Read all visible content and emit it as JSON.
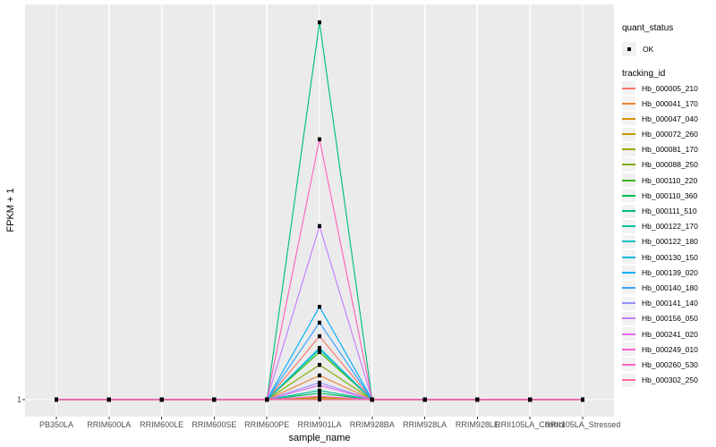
{
  "chart": {
    "xlabel": "sample_name",
    "ylabel": "FPKM + 1",
    "y_tick_label": "1",
    "legend_quant_title": "quant_status",
    "legend_quant_ok": "OK",
    "legend_tracking_title": "tracking_id"
  },
  "colors": {
    "panel_background": "#EBEBEB",
    "gridline": "#FFFFFF",
    "point_marker": "#000000",
    "axis_text": "#4D4D4D",
    "legend_key_background": "#F2F2F2"
  },
  "chart_data": {
    "type": "line",
    "title": "",
    "xlabel": "sample_name",
    "ylabel": "FPKM + 1",
    "x_categories": [
      "PB350LA",
      "RRIM600LA",
      "RRIM600LE",
      "RRIM600SE",
      "RRIM600PE",
      "RRIM901LA",
      "RRIM928BA",
      "RRIM928LA",
      "RRIM928LE",
      "RRII105LA_Control",
      "RRII105LA_Stressed"
    ],
    "y_axis_tick_labels": [
      "1"
    ],
    "baseline_value": 1,
    "peak_at_category": "RRIM901LA",
    "peak_category_index": 5,
    "y_note": "only labeled y tick is 1; every series is flat at 1 except a single peak at RRIM901LA; peak heights estimated as fraction of tallest peak",
    "legend_position": "right",
    "grid": "vertical-major-only",
    "quant_status_values": [
      "OK"
    ],
    "series": [
      {
        "tracking_id": "Hb_000005_210",
        "color": "#F8766D",
        "quant_status": "OK",
        "peak_fraction": 0.168
      },
      {
        "tracking_id": "Hb_000041_170",
        "color": "#EA8331",
        "quant_status": "OK",
        "peak_fraction": 0.064
      },
      {
        "tracking_id": "Hb_000047_040",
        "color": "#D89000",
        "quant_status": "OK",
        "peak_fraction": 0.007
      },
      {
        "tracking_id": "Hb_000072_260",
        "color": "#C09B00",
        "quant_status": "OK",
        "peak_fraction": 0.005
      },
      {
        "tracking_id": "Hb_000081_170",
        "color": "#A3A500",
        "quant_status": "OK",
        "peak_fraction": 0.002
      },
      {
        "tracking_id": "Hb_000088_250",
        "color": "#7CAE00",
        "quant_status": "OK",
        "peak_fraction": 0.092
      },
      {
        "tracking_id": "Hb_000110_220",
        "color": "#39B600",
        "quant_status": "OK",
        "peak_fraction": 0.126
      },
      {
        "tracking_id": "Hb_000110_360",
        "color": "#00BB4E",
        "quant_status": "OK",
        "peak_fraction": 0.017
      },
      {
        "tracking_id": "Hb_000111_510",
        "color": "#00BF7D",
        "quant_status": "OK",
        "peak_fraction": 1.0
      },
      {
        "tracking_id": "Hb_000122_170",
        "color": "#00C1A3",
        "quant_status": "OK",
        "peak_fraction": 0.024
      },
      {
        "tracking_id": "Hb_000122_180",
        "color": "#00BFC4",
        "quant_status": "OK",
        "peak_fraction": 0.133
      },
      {
        "tracking_id": "Hb_000130_150",
        "color": "#00BAE0",
        "quant_status": "OK",
        "peak_fraction": 0.137
      },
      {
        "tracking_id": "Hb_000139_020",
        "color": "#00B0F6",
        "quant_status": "OK",
        "peak_fraction": 0.246
      },
      {
        "tracking_id": "Hb_000140_180",
        "color": "#35A2FF",
        "quant_status": "OK",
        "peak_fraction": 0.204
      },
      {
        "tracking_id": "Hb_000141_140",
        "color": "#9590FF",
        "quant_status": "OK",
        "peak_fraction": 0.045
      },
      {
        "tracking_id": "Hb_000156_050",
        "color": "#C77CFF",
        "quant_status": "OK",
        "peak_fraction": 0.46
      },
      {
        "tracking_id": "Hb_000241_020",
        "color": "#E76BF3",
        "quant_status": "OK",
        "peak_fraction": 0.038
      },
      {
        "tracking_id": "Hb_000249_010",
        "color": "#FA62DB",
        "quant_status": "OK",
        "peak_fraction": 0.009
      },
      {
        "tracking_id": "Hb_000260_530",
        "color": "#FF62BC",
        "quant_status": "OK",
        "peak_fraction": 0.69
      },
      {
        "tracking_id": "Hb_000302_250",
        "color": "#FF6A98",
        "quant_status": "OK",
        "peak_fraction": 0.0
      }
    ]
  }
}
